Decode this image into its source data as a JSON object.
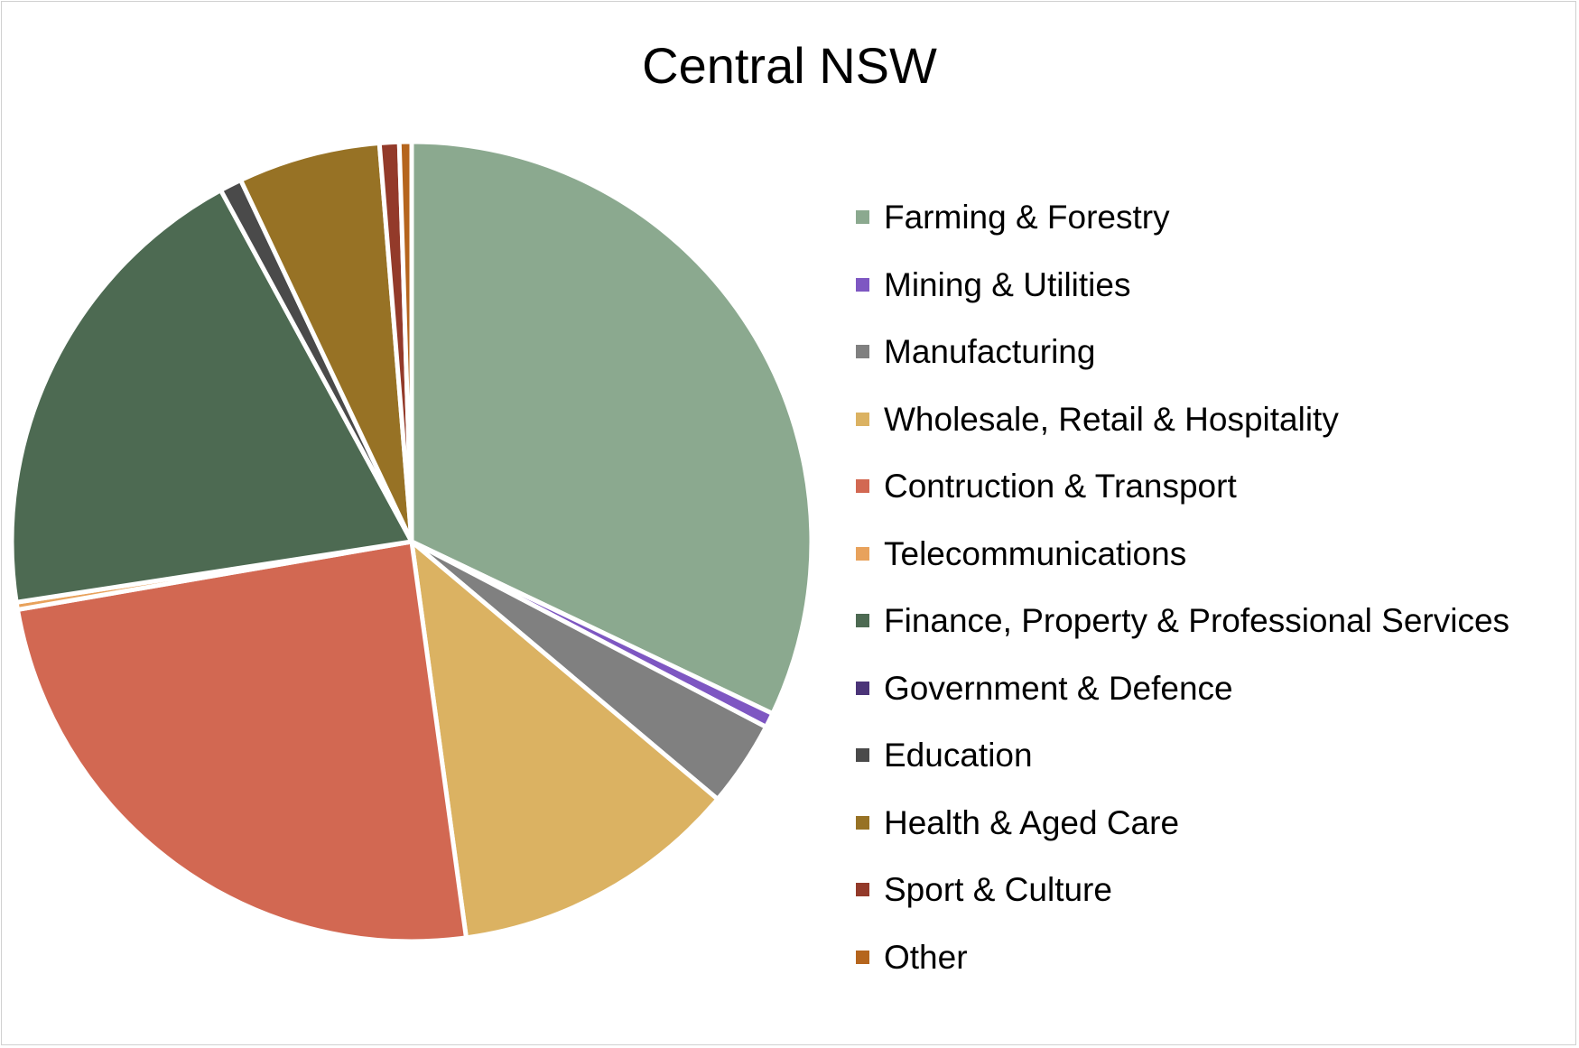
{
  "chart_data": {
    "type": "pie",
    "title": "Central NSW",
    "legend_position": "right",
    "start_angle_deg": 0,
    "direction": "clockwise",
    "slices": [
      {
        "label": "Farming & Forestry",
        "value": 32.4,
        "color": "#8BA98F"
      },
      {
        "label": "Mining & Utilities",
        "value": 0.6,
        "color": "#7E57C2"
      },
      {
        "label": "Manufacturing",
        "value": 3.5,
        "color": "#808080"
      },
      {
        "label": "Wholesale, Retail & Hospitality",
        "value": 11.8,
        "color": "#DBB262"
      },
      {
        "label": "Contruction & Transport",
        "value": 24.7,
        "color": "#D26852"
      },
      {
        "label": "Telecommunications",
        "value": 0.3,
        "color": "#E8A25C"
      },
      {
        "label": "Finance, Property & Professional Services",
        "value": 19.7,
        "color": "#4D6A52"
      },
      {
        "label": "Government & Defence",
        "value": 0.0,
        "color": "#4B3478"
      },
      {
        "label": "Education",
        "value": 0.9,
        "color": "#4A4A4A"
      },
      {
        "label": "Health & Aged Care",
        "value": 5.8,
        "color": "#977225"
      },
      {
        "label": "Sport & Culture",
        "value": 0.8,
        "color": "#933A2A"
      },
      {
        "label": "Other",
        "value": 0.5,
        "color": "#B5651D"
      }
    ]
  }
}
